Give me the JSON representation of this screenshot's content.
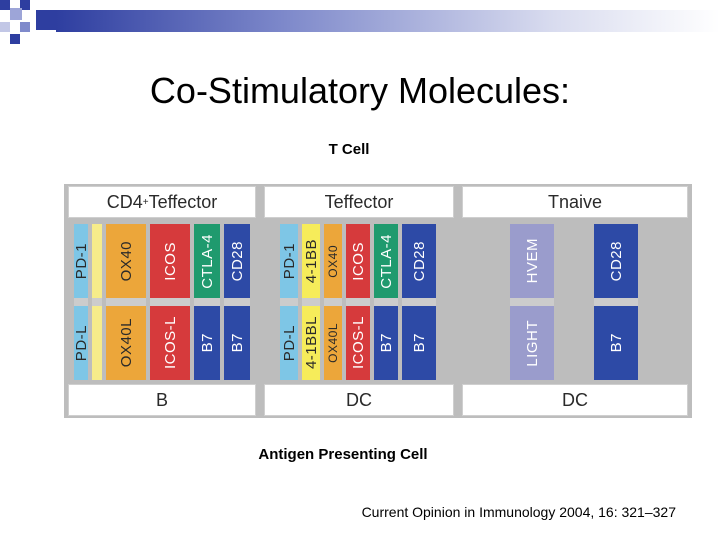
{
  "title": "Co-Stimulatory Molecules:",
  "figure": {
    "top_label": "T Cell",
    "bottom_label": "Antigen Presenting Cell",
    "panels": [
      {
        "header_main": "CD4",
        "header_sup": "+",
        "header_rest": " Teffector",
        "footer": "B",
        "columns": [
          {
            "top": "PD-1",
            "bottom": "PD-L",
            "color": "#7ec6e6",
            "text": "#2a2a2a"
          },
          {
            "top": "",
            "bottom": "",
            "color": "#f6ec8a",
            "text": "#2a2a2a"
          },
          {
            "top": "OX40",
            "bottom": "OX40L",
            "color": "#eca63a",
            "text": "#2a2a2a"
          },
          {
            "top": "ICOS",
            "bottom": "ICOS-L",
            "color": "#d63a3c",
            "text": "#ffffff"
          },
          {
            "top": "CTLA-4",
            "bottom": "B7",
            "color": "#1f9a6e",
            "text": "#ffffff"
          },
          {
            "top": "CD28",
            "bottom": "B7",
            "color": "#2d4aa6",
            "text": "#ffffff"
          }
        ]
      },
      {
        "header_main": "Teffector",
        "header_sup": "",
        "header_rest": "",
        "footer": "DC",
        "columns": [
          {
            "top": "PD-1",
            "bottom": "PD-L",
            "color": "#7ec6e6",
            "text": "#2a2a2a"
          },
          {
            "top": "4-1BB",
            "bottom": "4-1BBL",
            "color": "#f6ec5a",
            "text": "#2a2a2a"
          },
          {
            "top": "OX40",
            "bottom": "OX40L",
            "color": "#eca63a",
            "text": "#2a2a2a"
          },
          {
            "top": "ICOS",
            "bottom": "ICOS-L",
            "color": "#d63a3c",
            "text": "#ffffff"
          },
          {
            "top": "CTLA-4",
            "bottom": "B7",
            "color": "#1f9a6e",
            "text": "#ffffff"
          },
          {
            "top": "CD28",
            "bottom": "B7",
            "color": "#2d4aa6",
            "text": "#ffffff"
          }
        ]
      },
      {
        "header_main": "Tnaive",
        "header_sup": "",
        "header_rest": "",
        "footer": "DC",
        "columns": [
          {
            "top": "HVEM",
            "bottom": "LIGHT",
            "color": "#9a9ccc",
            "text": "#ffffff"
          },
          {
            "top": "CD28",
            "bottom": "B7",
            "color": "#2d4aa6",
            "text": "#ffffff"
          }
        ]
      }
    ]
  },
  "citation": "Current Opinion in Immunology 2004, 16: 321–327"
}
